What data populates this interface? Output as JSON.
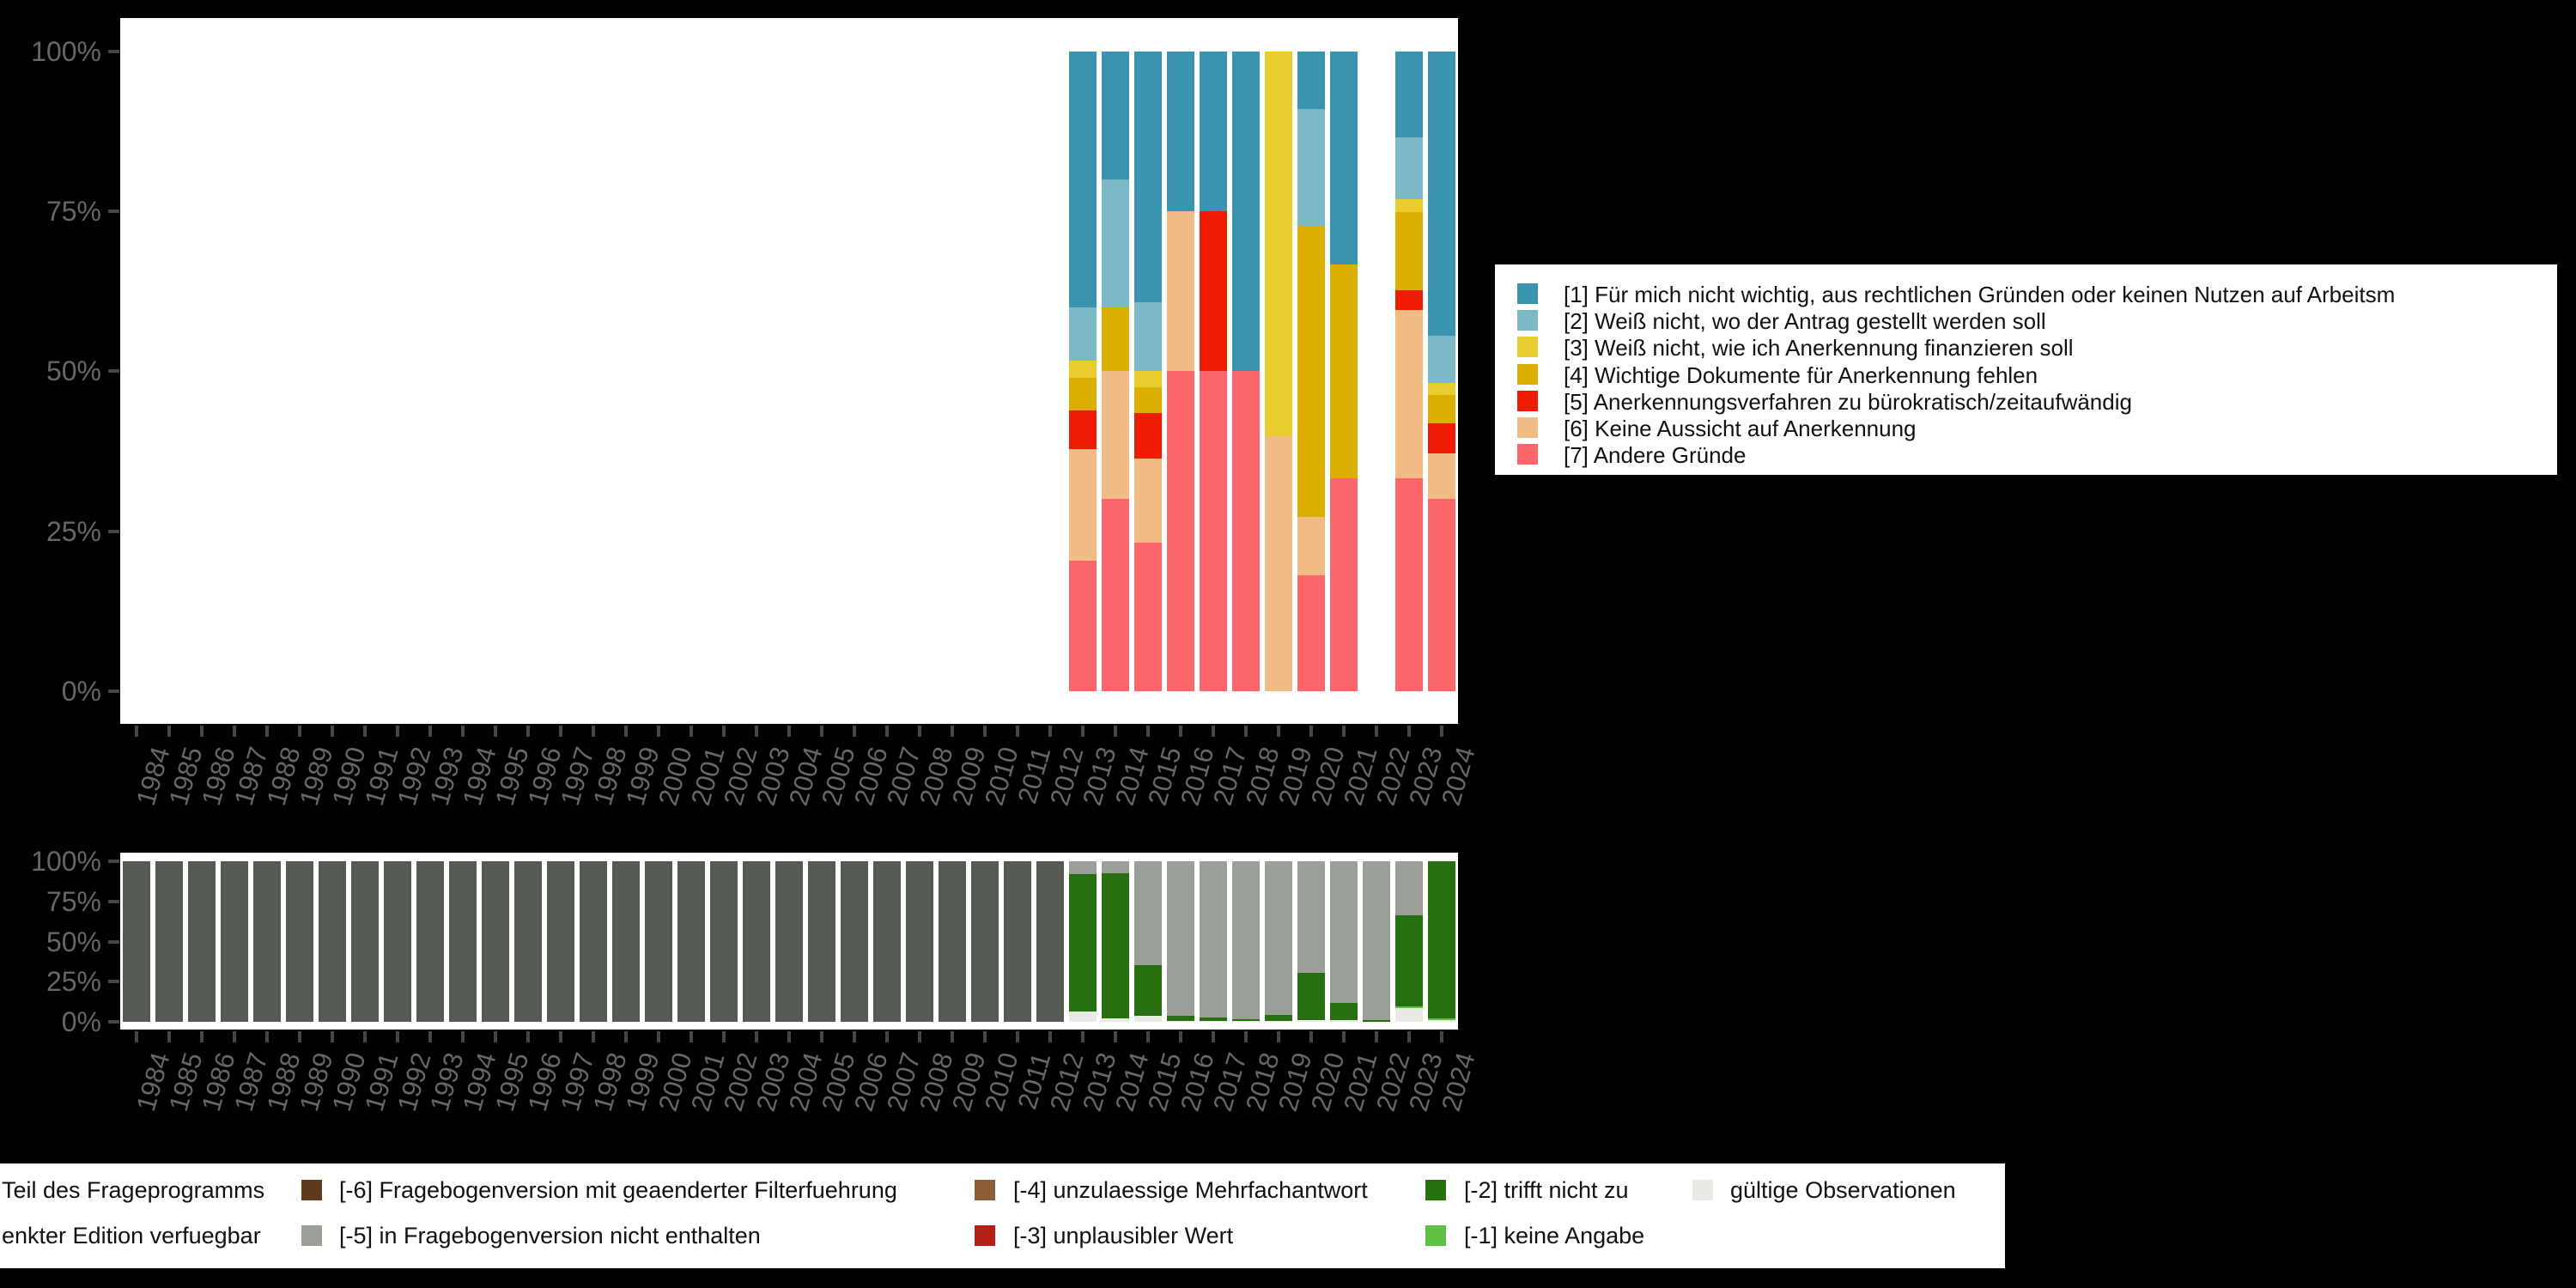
{
  "background_color": "#000000",
  "panel_color": "#ffffff",
  "axes": {
    "y_tick_labels": [
      "100%",
      "75%",
      "50%",
      "25%",
      "0%"
    ],
    "y_tick_percents": [
      100,
      75,
      50,
      25,
      0
    ]
  },
  "legend_top": {
    "items": [
      {
        "key": "1",
        "label": "[1] Für mich nicht wichtig, aus rechtlichen Gründen oder keinen Nutzen auf Arbeitsm",
        "color": "#3b94af"
      },
      {
        "key": "2",
        "label": "[2] Weiß nicht, wo der Antrag gestellt werden soll",
        "color": "#7cb9c6"
      },
      {
        "key": "3",
        "label": "[3] Weiß nicht, wie ich Anerkennung finanzieren soll",
        "color": "#e9cd2e"
      },
      {
        "key": "4",
        "label": "[4] Wichtige Dokumente für Anerkennung fehlen",
        "color": "#dcae00"
      },
      {
        "key": "5",
        "label": "[5] Anerkennungsverfahren zu bürokratisch/zeitaufwändig",
        "color": "#ee1c02"
      },
      {
        "key": "6",
        "label": "[6] Keine Aussicht auf Anerkennung",
        "color": "#f0bc84"
      },
      {
        "key": "7",
        "label": "[7] Andere Gründe",
        "color": "#fd676c"
      }
    ]
  },
  "legend_bottom": {
    "rows": [
      [
        {
          "key": "nicht_teil",
          "label": "Teil des Frageprogramms",
          "color": null
        },
        {
          "key": "-6",
          "label": "[-6] Fragebogenversion mit geaenderter Filterfuehrung",
          "color": "#5d3a1d"
        },
        {
          "key": "-4",
          "label": "[-4] unzulaessige Mehrfachantwort",
          "color": "#8b5d36"
        },
        {
          "key": "-2",
          "label": "[-2] trifft nicht zu",
          "color": "#27700f"
        },
        {
          "key": "valid",
          "label": "gültige Observationen",
          "color": "#e7ebe4"
        }
      ],
      [
        {
          "key": "edition",
          "label": "enkter Edition verfuegbar",
          "color": null
        },
        {
          "key": "-5",
          "label": "[-5] in Fragebogenversion nicht enthalten",
          "color": "#9aa098"
        },
        {
          "key": "-3",
          "label": "[-3] unplausibler Wert",
          "color": "#b32017"
        },
        {
          "key": "-1",
          "label": "[-1] keine Angabe",
          "color": "#5ec044"
        }
      ]
    ]
  },
  "chart_data": [
    {
      "type": "bar",
      "stacked": true,
      "title": "",
      "xlabel": "",
      "ylabel": "",
      "ylim": [
        0,
        100
      ],
      "grid": false,
      "legend_position": "right",
      "categories": [
        "1984",
        "1985",
        "1986",
        "1987",
        "1988",
        "1989",
        "1990",
        "1991",
        "1992",
        "1993",
        "1994",
        "1995",
        "1996",
        "1997",
        "1998",
        "1999",
        "2000",
        "2001",
        "2002",
        "2003",
        "2004",
        "2005",
        "2006",
        "2007",
        "2008",
        "2009",
        "2010",
        "2011",
        "2012",
        "2013",
        "2014",
        "2015",
        "2016",
        "2017",
        "2018",
        "2019",
        "2020",
        "2021",
        "2022",
        "2023",
        "2024"
      ],
      "colors": {
        "1": "#3b94af",
        "2": "#7cb9c6",
        "3": "#e9cd2e",
        "4": "#dcae00",
        "5": "#ee1c02",
        "6": "#f0bc84",
        "7": "#fd676c"
      },
      "bars": {
        "2013": [
          [
            "1",
            40.0
          ],
          [
            "2",
            8.4
          ],
          [
            "3",
            2.6
          ],
          [
            "4",
            5.1
          ],
          [
            "5",
            6.1
          ],
          [
            "6",
            17.4
          ],
          [
            "7",
            20.4
          ]
        ],
        "2014": [
          [
            "1",
            20.0
          ],
          [
            "2",
            20.0
          ],
          [
            "4",
            10.0
          ],
          [
            "6",
            20.0
          ],
          [
            "7",
            30.0
          ]
        ],
        "2015": [
          [
            "1",
            39.2
          ],
          [
            "2",
            10.7
          ],
          [
            "3",
            2.6
          ],
          [
            "4",
            4.1
          ],
          [
            "5",
            7.1
          ],
          [
            "6",
            13.1
          ],
          [
            "7",
            23.2
          ]
        ],
        "2016": [
          [
            "1",
            25.0
          ],
          [
            "6",
            25.0
          ],
          [
            "7",
            50.0
          ]
        ],
        "2017": [
          [
            "1",
            25.0
          ],
          [
            "5",
            25.0
          ],
          [
            "7",
            50.0
          ]
        ],
        "2018": [
          [
            "1",
            50.0
          ],
          [
            "7",
            50.0
          ]
        ],
        "2019": [
          [
            "3",
            60.2
          ],
          [
            "6",
            39.8
          ]
        ],
        "2020": [
          [
            "1",
            9.1
          ],
          [
            "2",
            18.2
          ],
          [
            "4",
            45.5
          ],
          [
            "6",
            9.1
          ],
          [
            "7",
            18.1
          ]
        ],
        "2021": [
          [
            "1",
            33.4
          ],
          [
            "4",
            33.3
          ],
          [
            "7",
            33.3
          ]
        ],
        "2023": [
          [
            "1",
            13.5
          ],
          [
            "2",
            9.6
          ],
          [
            "3",
            2.0
          ],
          [
            "4",
            12.3
          ],
          [
            "5",
            3.1
          ],
          [
            "6",
            26.3
          ],
          [
            "7",
            33.2
          ]
        ],
        "2024": [
          [
            "1",
            44.4
          ],
          [
            "2",
            7.4
          ],
          [
            "3",
            1.9
          ],
          [
            "4",
            4.5
          ],
          [
            "5",
            4.7
          ],
          [
            "6",
            7.1
          ],
          [
            "7",
            30.0
          ]
        ]
      }
    },
    {
      "type": "bar",
      "stacked": true,
      "title": "",
      "xlabel": "",
      "ylabel": "",
      "ylim": [
        0,
        100
      ],
      "grid": false,
      "legend_position": "bottom",
      "categories": [
        "1984",
        "1985",
        "1986",
        "1987",
        "1988",
        "1989",
        "1990",
        "1991",
        "1992",
        "1993",
        "1994",
        "1995",
        "1996",
        "1997",
        "1998",
        "1999",
        "2000",
        "2001",
        "2002",
        "2003",
        "2004",
        "2005",
        "2006",
        "2007",
        "2008",
        "2009",
        "2010",
        "2011",
        "2012",
        "2013",
        "2014",
        "2015",
        "2016",
        "2017",
        "2018",
        "2019",
        "2020",
        "2021",
        "2022",
        "2023",
        "2024"
      ],
      "colors": {
        "nicht_teil": "#555b53",
        "-6": "#5d3a1d",
        "-5": "#9aa098",
        "-4": "#8b5d36",
        "-3": "#b32017",
        "-2": "#27700f",
        "-1": "#5ec044",
        "valid": "#e7ebe4"
      },
      "bars": {
        "1984": [
          [
            "nicht_teil",
            100
          ]
        ],
        "1985": [
          [
            "nicht_teil",
            100
          ]
        ],
        "1986": [
          [
            "nicht_teil",
            100
          ]
        ],
        "1987": [
          [
            "nicht_teil",
            100
          ]
        ],
        "1988": [
          [
            "nicht_teil",
            100
          ]
        ],
        "1989": [
          [
            "nicht_teil",
            100
          ]
        ],
        "1990": [
          [
            "nicht_teil",
            100
          ]
        ],
        "1991": [
          [
            "nicht_teil",
            100
          ]
        ],
        "1992": [
          [
            "nicht_teil",
            100
          ]
        ],
        "1993": [
          [
            "nicht_teil",
            100
          ]
        ],
        "1994": [
          [
            "nicht_teil",
            100
          ]
        ],
        "1995": [
          [
            "nicht_teil",
            100
          ]
        ],
        "1996": [
          [
            "nicht_teil",
            100
          ]
        ],
        "1997": [
          [
            "nicht_teil",
            100
          ]
        ],
        "1998": [
          [
            "nicht_teil",
            100
          ]
        ],
        "1999": [
          [
            "nicht_teil",
            100
          ]
        ],
        "2000": [
          [
            "nicht_teil",
            100
          ]
        ],
        "2001": [
          [
            "nicht_teil",
            100
          ]
        ],
        "2002": [
          [
            "nicht_teil",
            100
          ]
        ],
        "2003": [
          [
            "nicht_teil",
            100
          ]
        ],
        "2004": [
          [
            "nicht_teil",
            100
          ]
        ],
        "2005": [
          [
            "nicht_teil",
            100
          ]
        ],
        "2006": [
          [
            "nicht_teil",
            100
          ]
        ],
        "2007": [
          [
            "nicht_teil",
            100
          ]
        ],
        "2008": [
          [
            "nicht_teil",
            100
          ]
        ],
        "2009": [
          [
            "nicht_teil",
            100
          ]
        ],
        "2010": [
          [
            "nicht_teil",
            100
          ]
        ],
        "2011": [
          [
            "nicht_teil",
            100
          ]
        ],
        "2012": [
          [
            "nicht_teil",
            100
          ]
        ],
        "2013": [
          [
            "-5",
            7.8
          ],
          [
            "-2",
            86.0
          ],
          [
            "valid",
            6.2
          ]
        ],
        "2014": [
          [
            "-5",
            7.4
          ],
          [
            "-2",
            90.3
          ],
          [
            "valid",
            2.3
          ]
        ],
        "2015": [
          [
            "-5",
            64.6
          ],
          [
            "-2",
            31.9
          ],
          [
            "valid",
            3.5
          ]
        ],
        "2016": [
          [
            "-5",
            96.2
          ],
          [
            "-2",
            3.0
          ],
          [
            "valid",
            0.8
          ]
        ],
        "2017": [
          [
            "-5",
            97.5
          ],
          [
            "-2",
            2.0
          ],
          [
            "valid",
            0.5
          ]
        ],
        "2018": [
          [
            "-5",
            98.3
          ],
          [
            "-2",
            1.2
          ],
          [
            "valid",
            0.5
          ]
        ],
        "2019": [
          [
            "-5",
            95.6
          ],
          [
            "-2",
            3.9
          ],
          [
            "valid",
            0.5
          ]
        ],
        "2020": [
          [
            "-5",
            69.5
          ],
          [
            "-2",
            29.7
          ],
          [
            "valid",
            0.8
          ]
        ],
        "2021": [
          [
            "-5",
            88.5
          ],
          [
            "-2",
            10.5
          ],
          [
            "valid",
            1.0
          ]
        ],
        "2022": [
          [
            "-5",
            98.7
          ],
          [
            "-2",
            1.3
          ]
        ],
        "2023": [
          [
            "-5",
            33.8
          ],
          [
            "-2",
            56.7
          ],
          [
            "-1",
            1.0
          ],
          [
            "valid",
            8.5
          ]
        ],
        "2024": [
          [
            "-2",
            97.6
          ],
          [
            "-1",
            1.2
          ],
          [
            "valid",
            1.2
          ]
        ]
      }
    }
  ]
}
